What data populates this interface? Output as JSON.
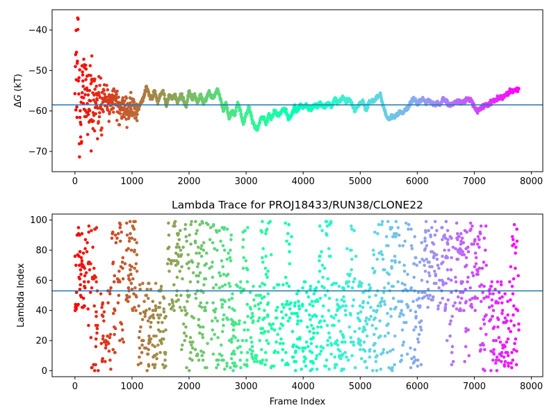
{
  "chart_data": [
    {
      "type": "scatter",
      "title": "",
      "xlabel": "",
      "ylabel": "ΔG (kT)",
      "ylabel_parts": {
        "delta": "Δ",
        "var": "G",
        "unit": " (kT)"
      },
      "xlim": [
        -400,
        8200
      ],
      "ylim": [
        -75,
        -35
      ],
      "xticks": [
        0,
        1000,
        2000,
        3000,
        4000,
        5000,
        6000,
        7000,
        8000
      ],
      "yticks": [
        -70,
        -60,
        -50,
        -40
      ],
      "hline": {
        "y": -58.5,
        "color": "#1f77b4"
      },
      "colormap": "rainbow_r",
      "x_max": 7780,
      "series": [
        {
          "x": [
            0,
            20,
            40,
            60,
            80,
            100,
            150,
            200,
            300,
            400,
            500,
            600,
            700,
            800,
            900,
            1000,
            1100,
            1150,
            1200,
            1250,
            1300,
            1350,
            1400,
            1450,
            1500,
            1550,
            1600,
            1650,
            1700,
            1750,
            1800,
            1850,
            1900,
            1950,
            2000,
            2050,
            2100,
            2150,
            2200,
            2250,
            2300,
            2350,
            2400,
            2450,
            2500,
            2550,
            2600,
            2650,
            2700,
            2750,
            2800,
            2850,
            2900,
            2950,
            3000,
            3050,
            3100,
            3150,
            3200,
            3250,
            3300,
            3350,
            3400,
            3450,
            3500,
            3550,
            3600,
            3650,
            3700,
            3750,
            3800,
            3850,
            3900,
            3950,
            4000,
            4050,
            4100,
            4150,
            4200,
            4250,
            4300,
            4350,
            4400,
            4450,
            4500,
            4550,
            4600,
            4650,
            4700,
            4750,
            4800,
            4850,
            4900,
            4950,
            5000,
            5050,
            5100,
            5150,
            5200,
            5250,
            5300,
            5350,
            5400,
            5450,
            5500,
            5550,
            5600,
            5650,
            5700,
            5750,
            5800,
            5850,
            5900,
            5950,
            6000,
            6050,
            6100,
            6150,
            6200,
            6250,
            6300,
            6350,
            6400,
            6450,
            6500,
            6550,
            6600,
            6650,
            6700,
            6750,
            6800,
            6850,
            6900,
            6950,
            7000,
            7050,
            7100,
            7150,
            7200,
            7250,
            7300,
            7350,
            7400,
            7450,
            7500,
            7550,
            7600,
            7650,
            7700,
            7750,
            7780
          ],
          "y": [
            -58,
            -50,
            -55,
            -46,
            -62,
            -58,
            -54,
            -57,
            -60,
            -58,
            -57,
            -59,
            -57,
            -59,
            -60,
            -59,
            -60,
            -58,
            -57,
            -54,
            -56,
            -57,
            -55,
            -58,
            -56,
            -55,
            -59,
            -56,
            -57,
            -56,
            -58,
            -56,
            -57,
            -59,
            -55,
            -57,
            -56,
            -58,
            -56,
            -58,
            -57,
            -55,
            -57,
            -56,
            -54.5,
            -57,
            -60,
            -58,
            -62,
            -60,
            -61,
            -58,
            -60,
            -63,
            -61,
            -59,
            -62,
            -64,
            -64.5,
            -62,
            -61.5,
            -63,
            -61,
            -62,
            -60,
            -61,
            -60.5,
            -59.5,
            -60,
            -62,
            -61,
            -59,
            -60,
            -58.5,
            -59,
            -58.5,
            -59.5,
            -59.5,
            -58.5,
            -59,
            -58,
            -59,
            -58.5,
            -58,
            -59,
            -57,
            -58,
            -57.5,
            -56.5,
            -58,
            -57,
            -58,
            -60,
            -59,
            -58,
            -57.5,
            -60,
            -58,
            -57.5,
            -57.5,
            -56.5,
            -56,
            -58.5,
            -61,
            -62,
            -61.5,
            -61.5,
            -61,
            -60,
            -60.5,
            -59.5,
            -59,
            -57.5,
            -57,
            -58,
            -57.5,
            -57,
            -58,
            -57.5,
            -58,
            -58.5,
            -58,
            -58.5,
            -57,
            -57.5,
            -58.5,
            -58.5,
            -58,
            -57.5,
            -58,
            -58,
            -57.5,
            -57,
            -57.5,
            -59,
            -60,
            -59.5,
            -59,
            -58.5,
            -58.5,
            -57.5,
            -57.5,
            -57,
            -56.5,
            -56.5,
            -56,
            -55.5,
            -55,
            -55,
            -54.7,
            -54.7
          ]
        }
      ]
    },
    {
      "type": "scatter",
      "title": "Lambda Trace for PROJ18433/RUN38/CLONE22",
      "xlabel": "Frame Index",
      "ylabel": "Lambda Index",
      "xlim": [
        -400,
        8200
      ],
      "ylim": [
        -4,
        104
      ],
      "xticks": [
        0,
        1000,
        2000,
        3000,
        4000,
        5000,
        6000,
        7000,
        8000
      ],
      "yticks": [
        0,
        20,
        40,
        60,
        80,
        100
      ],
      "hline": {
        "y": 53,
        "color": "#1f77b4"
      },
      "colormap": "rainbow_r",
      "x_max": 7780,
      "lambda_range": [
        0,
        99
      ]
    }
  ]
}
